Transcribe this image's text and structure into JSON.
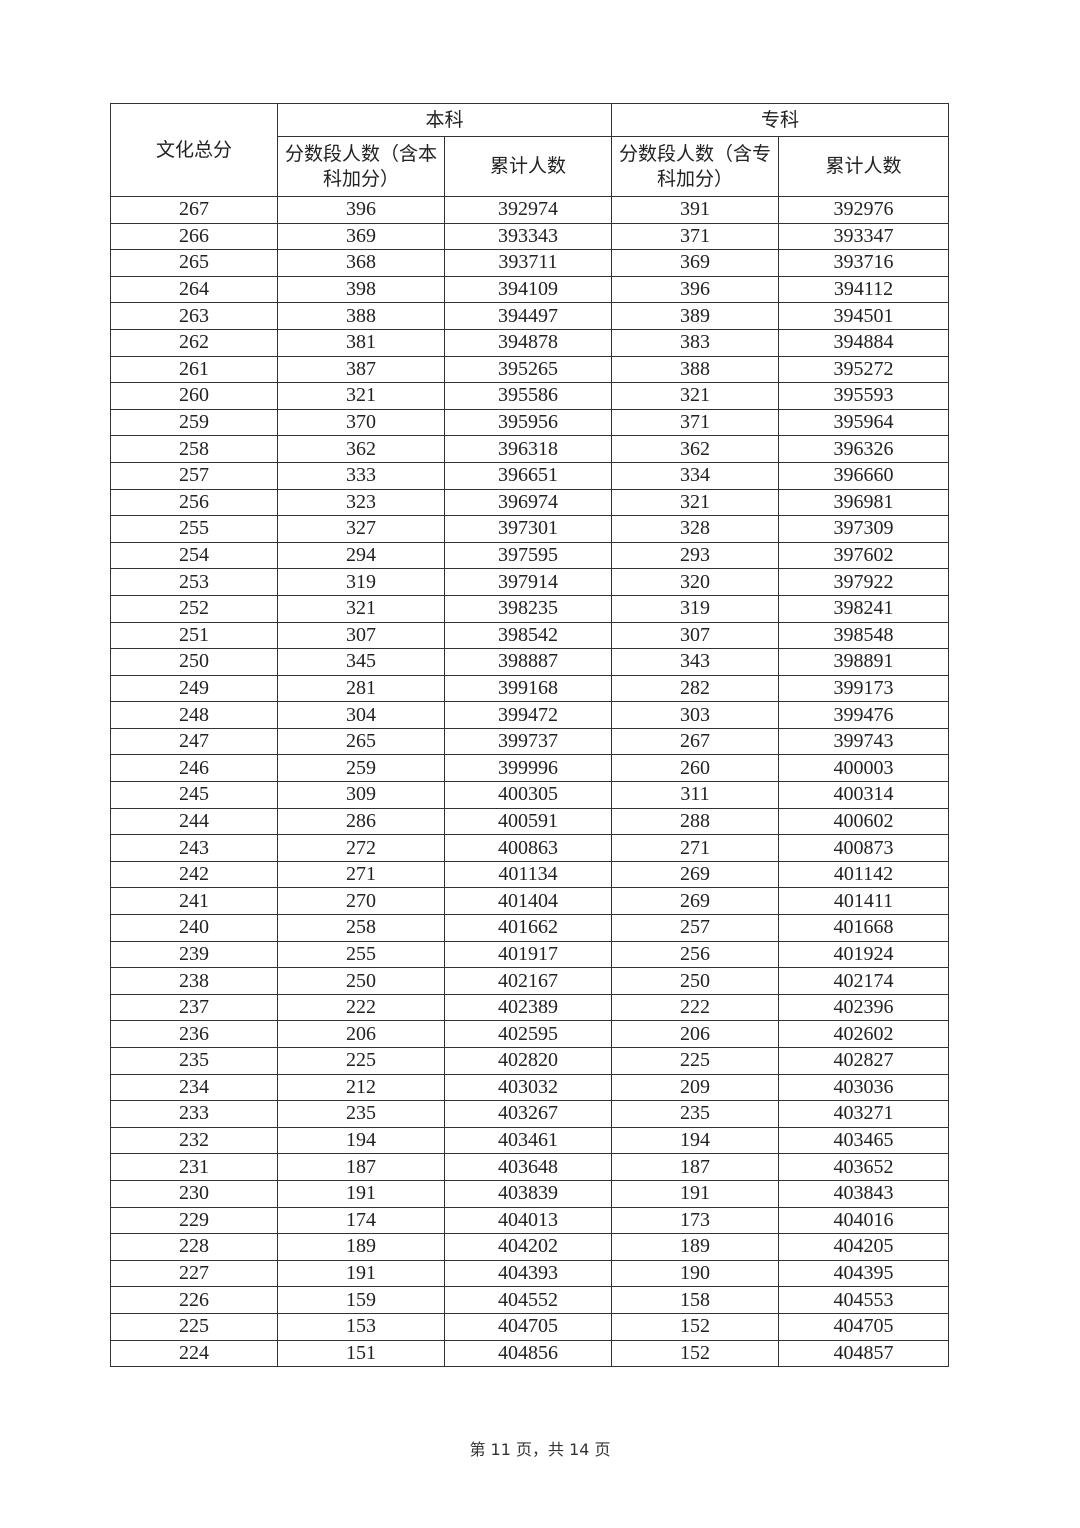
{
  "table": {
    "header": {
      "score": "文化总分",
      "undergrad": "本科",
      "junior": "专科",
      "undergrad_count": "分数段人数（含本科加分）",
      "undergrad_cumulative": "累计人数",
      "junior_count": "分数段人数（含专科加分）",
      "junior_cumulative": "累计人数"
    },
    "rows": [
      [
        267,
        396,
        392974,
        391,
        392976
      ],
      [
        266,
        369,
        393343,
        371,
        393347
      ],
      [
        265,
        368,
        393711,
        369,
        393716
      ],
      [
        264,
        398,
        394109,
        396,
        394112
      ],
      [
        263,
        388,
        394497,
        389,
        394501
      ],
      [
        262,
        381,
        394878,
        383,
        394884
      ],
      [
        261,
        387,
        395265,
        388,
        395272
      ],
      [
        260,
        321,
        395586,
        321,
        395593
      ],
      [
        259,
        370,
        395956,
        371,
        395964
      ],
      [
        258,
        362,
        396318,
        362,
        396326
      ],
      [
        257,
        333,
        396651,
        334,
        396660
      ],
      [
        256,
        323,
        396974,
        321,
        396981
      ],
      [
        255,
        327,
        397301,
        328,
        397309
      ],
      [
        254,
        294,
        397595,
        293,
        397602
      ],
      [
        253,
        319,
        397914,
        320,
        397922
      ],
      [
        252,
        321,
        398235,
        319,
        398241
      ],
      [
        251,
        307,
        398542,
        307,
        398548
      ],
      [
        250,
        345,
        398887,
        343,
        398891
      ],
      [
        249,
        281,
        399168,
        282,
        399173
      ],
      [
        248,
        304,
        399472,
        303,
        399476
      ],
      [
        247,
        265,
        399737,
        267,
        399743
      ],
      [
        246,
        259,
        399996,
        260,
        400003
      ],
      [
        245,
        309,
        400305,
        311,
        400314
      ],
      [
        244,
        286,
        400591,
        288,
        400602
      ],
      [
        243,
        272,
        400863,
        271,
        400873
      ],
      [
        242,
        271,
        401134,
        269,
        401142
      ],
      [
        241,
        270,
        401404,
        269,
        401411
      ],
      [
        240,
        258,
        401662,
        257,
        401668
      ],
      [
        239,
        255,
        401917,
        256,
        401924
      ],
      [
        238,
        250,
        402167,
        250,
        402174
      ],
      [
        237,
        222,
        402389,
        222,
        402396
      ],
      [
        236,
        206,
        402595,
        206,
        402602
      ],
      [
        235,
        225,
        402820,
        225,
        402827
      ],
      [
        234,
        212,
        403032,
        209,
        403036
      ],
      [
        233,
        235,
        403267,
        235,
        403271
      ],
      [
        232,
        194,
        403461,
        194,
        403465
      ],
      [
        231,
        187,
        403648,
        187,
        403652
      ],
      [
        230,
        191,
        403839,
        191,
        403843
      ],
      [
        229,
        174,
        404013,
        173,
        404016
      ],
      [
        228,
        189,
        404202,
        189,
        404205
      ],
      [
        227,
        191,
        404393,
        190,
        404395
      ],
      [
        226,
        159,
        404552,
        158,
        404553
      ],
      [
        225,
        153,
        404705,
        152,
        404705
      ],
      [
        224,
        151,
        404856,
        152,
        404857
      ]
    ]
  },
  "footer": "第 11 页，共 14 页"
}
